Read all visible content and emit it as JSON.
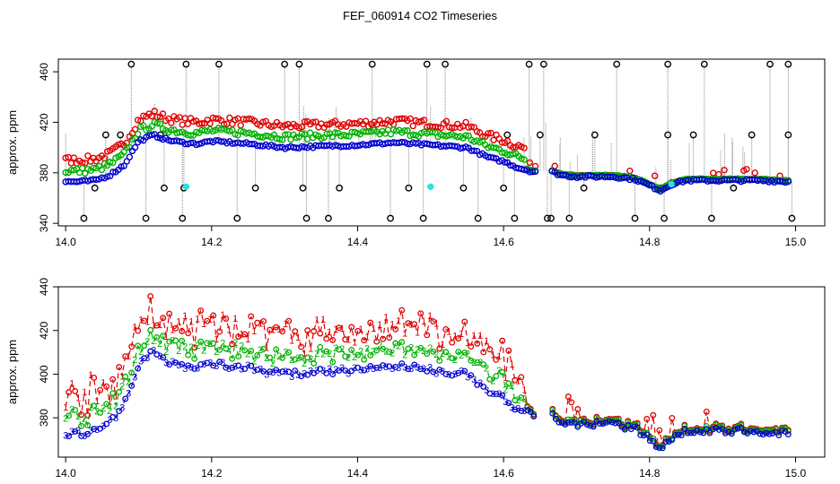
{
  "title": "FEF_060914  CO2 Timeseries",
  "colors": {
    "black": "#000000",
    "red": "#e00000",
    "green": "#00b000",
    "blue": "#0000d0",
    "cyan": "#30e0e0",
    "gray": "#888888"
  },
  "chart_data": [
    {
      "type": "scatter",
      "ylabel": "approx. ppm",
      "xlim": [
        13.99,
        15.04
      ],
      "ylim": [
        338,
        470
      ],
      "xticks": [
        "14.0",
        "14.2",
        "14.4",
        "14.6",
        "14.8",
        "15.0"
      ],
      "yticks": [
        "340",
        "380",
        "420",
        "460"
      ],
      "xtick_values": [
        14.0,
        14.2,
        14.4,
        14.6,
        14.8,
        15.0
      ],
      "ytick_values": [
        340,
        380,
        420,
        460
      ],
      "anchors": {
        "x": [
          14.0,
          14.02,
          14.04,
          14.06,
          14.08,
          14.1,
          14.12,
          14.14,
          14.16,
          14.18,
          14.2,
          14.25,
          14.3,
          14.35,
          14.4,
          14.45,
          14.5,
          14.55,
          14.58,
          14.6,
          14.62,
          14.64,
          14.66,
          14.68,
          14.7,
          14.75,
          14.78,
          14.8,
          14.815,
          14.83,
          14.85,
          14.9,
          14.95,
          14.99
        ],
        "blue": [
          373,
          373,
          374,
          378,
          386,
          405,
          410,
          406,
          404,
          403,
          405,
          403,
          400,
          401,
          402,
          404,
          402,
          400,
          392,
          389,
          384,
          381,
          382,
          378,
          377,
          377,
          375,
          370,
          366,
          371,
          374,
          374,
          374,
          373
        ]
      },
      "outlier_points": [
        [
          14.025,
          344
        ],
        [
          14.04,
          368
        ],
        [
          14.09,
          466
        ],
        [
          14.11,
          344
        ],
        [
          14.135,
          368
        ],
        [
          14.16,
          344
        ],
        [
          14.162,
          368
        ],
        [
          14.165,
          466
        ],
        [
          14.21,
          466
        ],
        [
          14.235,
          344
        ],
        [
          14.26,
          368
        ],
        [
          14.3,
          466
        ],
        [
          14.32,
          466
        ],
        [
          14.325,
          368
        ],
        [
          14.33,
          344
        ],
        [
          14.36,
          344
        ],
        [
          14.375,
          368
        ],
        [
          14.42,
          466
        ],
        [
          14.445,
          344
        ],
        [
          14.47,
          368
        ],
        [
          14.49,
          344
        ],
        [
          14.495,
          466
        ],
        [
          14.52,
          466
        ],
        [
          14.545,
          368
        ],
        [
          14.565,
          344
        ],
        [
          14.6,
          368
        ],
        [
          14.615,
          344
        ],
        [
          14.635,
          466
        ],
        [
          14.655,
          466
        ],
        [
          14.66,
          344
        ],
        [
          14.665,
          344
        ],
        [
          14.69,
          344
        ],
        [
          14.71,
          368
        ],
        [
          14.755,
          466
        ],
        [
          14.78,
          344
        ],
        [
          14.815,
          368
        ],
        [
          14.82,
          344
        ],
        [
          14.825,
          466
        ],
        [
          14.875,
          466
        ],
        [
          14.885,
          344
        ],
        [
          14.915,
          368
        ],
        [
          14.965,
          466
        ],
        [
          14.99,
          466
        ],
        [
          14.995,
          344
        ],
        [
          14.605,
          410
        ],
        [
          14.65,
          410
        ],
        [
          14.725,
          410
        ],
        [
          14.825,
          410
        ],
        [
          14.86,
          410
        ],
        [
          14.94,
          410
        ],
        [
          14.99,
          410
        ],
        [
          14.055,
          410
        ],
        [
          14.075,
          410
        ],
        [
          14.13,
          410
        ]
      ],
      "cyan_points": [
        [
          14.165,
          369
        ],
        [
          14.5,
          369
        ],
        [
          14.83,
          371
        ]
      ]
    },
    {
      "type": "line",
      "ylabel": "approx. ppm",
      "xlim": [
        13.99,
        15.04
      ],
      "ylim": [
        362,
        440
      ],
      "xticks": [
        "14.0",
        "14.2",
        "14.4",
        "14.6",
        "14.8",
        "15.0"
      ],
      "yticks": [
        "380",
        "400",
        "420",
        "440"
      ],
      "xtick_values": [
        14.0,
        14.2,
        14.4,
        14.6,
        14.8,
        15.0
      ],
      "ytick_values": [
        380,
        400,
        420,
        440
      ],
      "x_end": 14.99,
      "series": [
        {
          "name": "1",
          "label": "1"
        },
        {
          "name": "2",
          "label": "2"
        },
        {
          "name": "3",
          "label": "3"
        }
      ],
      "gap": [
        14.645,
        14.665
      ]
    }
  ]
}
